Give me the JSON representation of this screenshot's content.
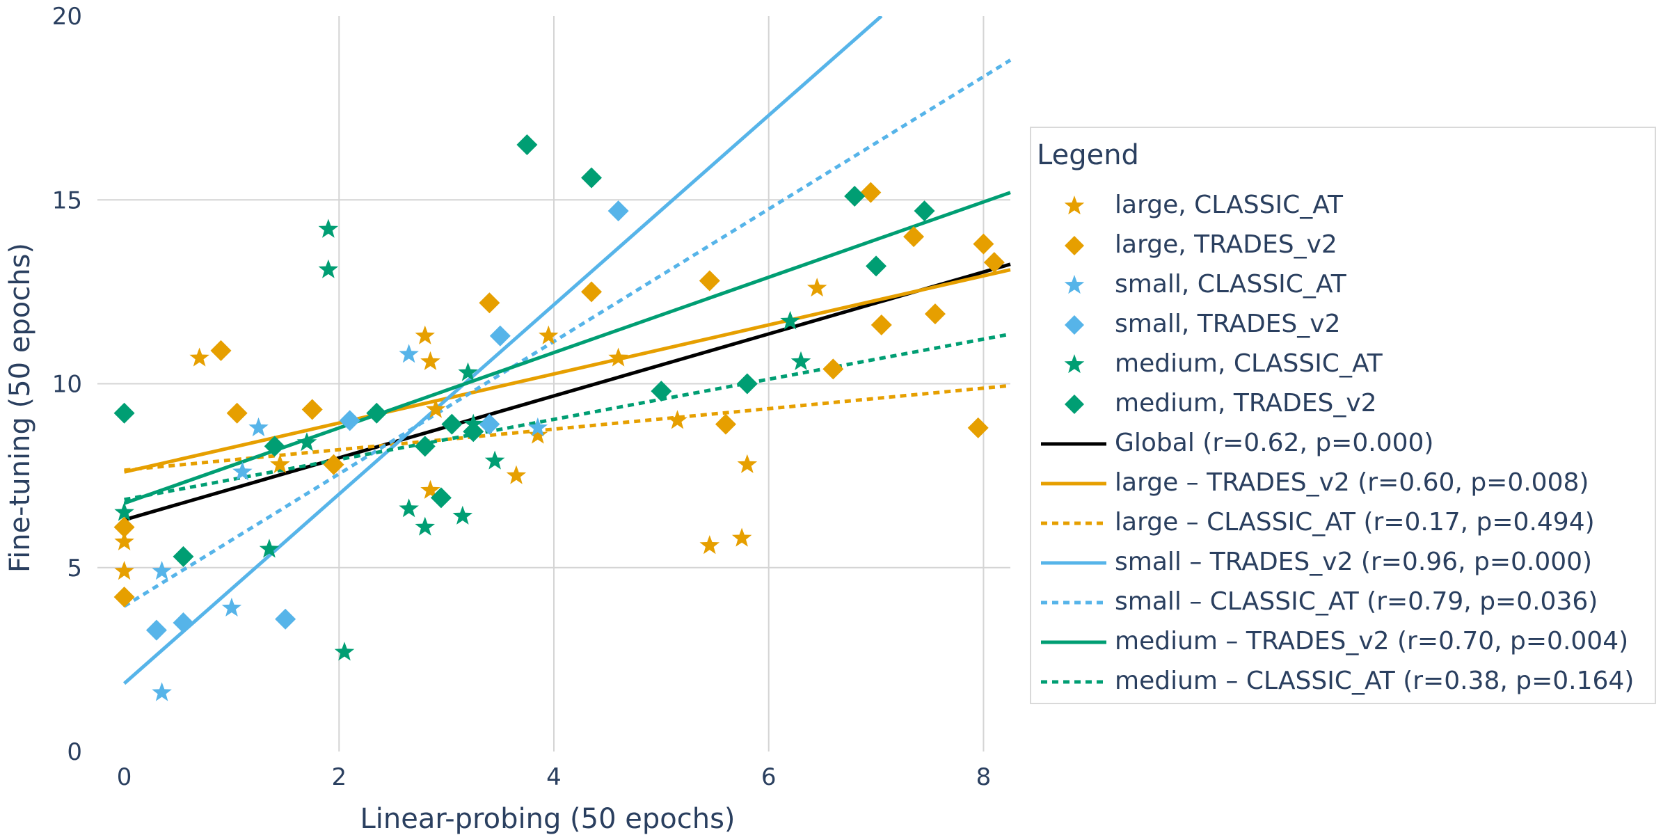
{
  "chart_data": {
    "type": "scatter",
    "xlabel": "Linear-probing (50 epochs)",
    "ylabel": "Fine-tuning (50 epochs)",
    "xlim": [
      -0.25,
      8.25
    ],
    "ylim": [
      0,
      20
    ],
    "x_ticks": [
      0,
      2,
      4,
      6,
      8
    ],
    "y_ticks": [
      0,
      5,
      10,
      15,
      20
    ],
    "x_tick_labels": [
      "0",
      "2",
      "4",
      "6",
      "8"
    ],
    "y_tick_labels": [
      "0",
      "5",
      "10",
      "15",
      "20"
    ],
    "grid": true,
    "legend": {
      "title": "Legend",
      "placement": "right",
      "entries": [
        {
          "label": "large, CLASSIC_AT",
          "kind": "star",
          "color": "#E69F00"
        },
        {
          "label": "large, TRADES_v2",
          "kind": "diamond",
          "color": "#E69F00"
        },
        {
          "label": "small, CLASSIC_AT",
          "kind": "star",
          "color": "#56B4E9"
        },
        {
          "label": "small, TRADES_v2",
          "kind": "diamond",
          "color": "#56B4E9"
        },
        {
          "label": "medium, CLASSIC_AT",
          "kind": "star",
          "color": "#009E73"
        },
        {
          "label": "medium, TRADES_v2",
          "kind": "diamond",
          "color": "#009E73"
        },
        {
          "label": "Global (r=0.62, p=0.000)",
          "kind": "solid",
          "color": "#000000"
        },
        {
          "label": "large – TRADES_v2 (r=0.60, p=0.008)",
          "kind": "solid",
          "color": "#E69F00"
        },
        {
          "label": "large – CLASSIC_AT (r=0.17, p=0.494)",
          "kind": "dash",
          "color": "#E69F00"
        },
        {
          "label": "small – TRADES_v2 (r=0.96, p=0.000)",
          "kind": "solid",
          "color": "#56B4E9"
        },
        {
          "label": "small – CLASSIC_AT (r=0.79, p=0.036)",
          "kind": "dash",
          "color": "#56B4E9"
        },
        {
          "label": "medium – TRADES_v2 (r=0.70, p=0.004)",
          "kind": "solid",
          "color": "#009E73"
        },
        {
          "label": "medium – CLASSIC_AT (r=0.38, p=0.164)",
          "kind": "dash",
          "color": "#009E73"
        }
      ]
    },
    "series": [
      {
        "name": "large, CLASSIC_AT",
        "marker": "star",
        "color": "#E69F00",
        "points": [
          [
            0,
            5.7
          ],
          [
            0,
            4.9
          ],
          [
            0.7,
            10.7
          ],
          [
            1.45,
            7.8
          ],
          [
            2.8,
            11.3
          ],
          [
            2.85,
            10.6
          ],
          [
            2.85,
            7.1
          ],
          [
            2.9,
            9.3
          ],
          [
            3.65,
            7.5
          ],
          [
            3.85,
            8.6
          ],
          [
            3.95,
            11.3
          ],
          [
            4.6,
            10.7
          ],
          [
            5.15,
            9.0
          ],
          [
            5.45,
            5.6
          ],
          [
            5.75,
            5.8
          ],
          [
            5.8,
            7.8
          ],
          [
            6.45,
            12.6
          ]
        ]
      },
      {
        "name": "large, TRADES_v2",
        "marker": "diamond",
        "color": "#E69F00",
        "points": [
          [
            0,
            6.1
          ],
          [
            0,
            4.2
          ],
          [
            0.9,
            10.9
          ],
          [
            1.05,
            9.2
          ],
          [
            1.75,
            9.3
          ],
          [
            1.95,
            7.8
          ],
          [
            3.4,
            12.2
          ],
          [
            4.35,
            12.5
          ],
          [
            5.45,
            12.8
          ],
          [
            5.6,
            8.9
          ],
          [
            6.6,
            10.4
          ],
          [
            6.95,
            15.2
          ],
          [
            7.05,
            11.6
          ],
          [
            7.35,
            14.0
          ],
          [
            7.55,
            11.9
          ],
          [
            7.95,
            8.8
          ],
          [
            8.0,
            13.8
          ],
          [
            8.1,
            13.3
          ]
        ]
      },
      {
        "name": "small, CLASSIC_AT",
        "marker": "star",
        "color": "#56B4E9",
        "points": [
          [
            0.35,
            4.9
          ],
          [
            0.35,
            1.6
          ],
          [
            1.0,
            3.9
          ],
          [
            1.1,
            7.6
          ],
          [
            1.25,
            8.8
          ],
          [
            2.65,
            10.8
          ],
          [
            3.85,
            8.8
          ]
        ]
      },
      {
        "name": "small, TRADES_v2",
        "marker": "diamond",
        "color": "#56B4E9",
        "points": [
          [
            0.3,
            3.3
          ],
          [
            0.55,
            3.5
          ],
          [
            1.5,
            3.6
          ],
          [
            2.1,
            9.0
          ],
          [
            3.4,
            8.9
          ],
          [
            3.5,
            11.3
          ],
          [
            4.6,
            14.7
          ]
        ]
      },
      {
        "name": "medium, CLASSIC_AT",
        "marker": "star",
        "color": "#009E73",
        "points": [
          [
            0,
            6.5
          ],
          [
            1.35,
            5.5
          ],
          [
            1.7,
            8.4
          ],
          [
            1.9,
            14.2
          ],
          [
            1.9,
            13.1
          ],
          [
            2.05,
            2.7
          ],
          [
            2.65,
            6.6
          ],
          [
            2.8,
            6.1
          ],
          [
            3.15,
            6.4
          ],
          [
            3.2,
            10.3
          ],
          [
            3.25,
            8.9
          ],
          [
            3.45,
            7.9
          ],
          [
            6.2,
            11.7
          ],
          [
            6.3,
            10.6
          ]
        ]
      },
      {
        "name": "medium, TRADES_v2",
        "marker": "diamond",
        "color": "#009E73",
        "points": [
          [
            0,
            9.2
          ],
          [
            0.55,
            5.3
          ],
          [
            1.4,
            8.3
          ],
          [
            2.35,
            9.2
          ],
          [
            2.8,
            8.3
          ],
          [
            2.95,
            6.9
          ],
          [
            3.05,
            8.9
          ],
          [
            3.25,
            8.7
          ],
          [
            3.75,
            16.5
          ],
          [
            4.35,
            15.6
          ],
          [
            5.0,
            9.8
          ],
          [
            5.8,
            10.0
          ],
          [
            6.8,
            15.1
          ],
          [
            7.0,
            13.2
          ],
          [
            7.45,
            14.7
          ]
        ]
      }
    ],
    "fit_lines": [
      {
        "name": "Global (r=0.62, p=0.000)",
        "style": "solid",
        "color": "#000000",
        "x": [
          0,
          8.25
        ],
        "y": [
          6.3,
          13.25
        ]
      },
      {
        "name": "large – TRADES_v2 (r=0.60, p=0.008)",
        "style": "solid",
        "color": "#E69F00",
        "x": [
          0,
          8.25
        ],
        "y": [
          7.6,
          13.1
        ]
      },
      {
        "name": "large – CLASSIC_AT (r=0.17, p=0.494)",
        "style": "dash",
        "color": "#E69F00",
        "x": [
          0,
          8.25
        ],
        "y": [
          7.65,
          9.95
        ]
      },
      {
        "name": "small – TRADES_v2 (r=0.96, p=0.000)",
        "style": "solid",
        "color": "#56B4E9",
        "x": [
          0,
          7.05
        ],
        "y": [
          1.85,
          20
        ]
      },
      {
        "name": "small – CLASSIC_AT (r=0.79, p=0.036)",
        "style": "dash",
        "color": "#56B4E9",
        "x": [
          0,
          8.25
        ],
        "y": [
          3.95,
          18.8
        ]
      },
      {
        "name": "medium – TRADES_v2 (r=0.70, p=0.004)",
        "style": "solid",
        "color": "#009E73",
        "x": [
          0,
          8.25
        ],
        "y": [
          6.75,
          15.2
        ]
      },
      {
        "name": "medium – CLASSIC_AT (r=0.38, p=0.164)",
        "style": "dash",
        "color": "#009E73",
        "x": [
          0,
          8.25
        ],
        "y": [
          6.85,
          11.35
        ]
      }
    ]
  }
}
